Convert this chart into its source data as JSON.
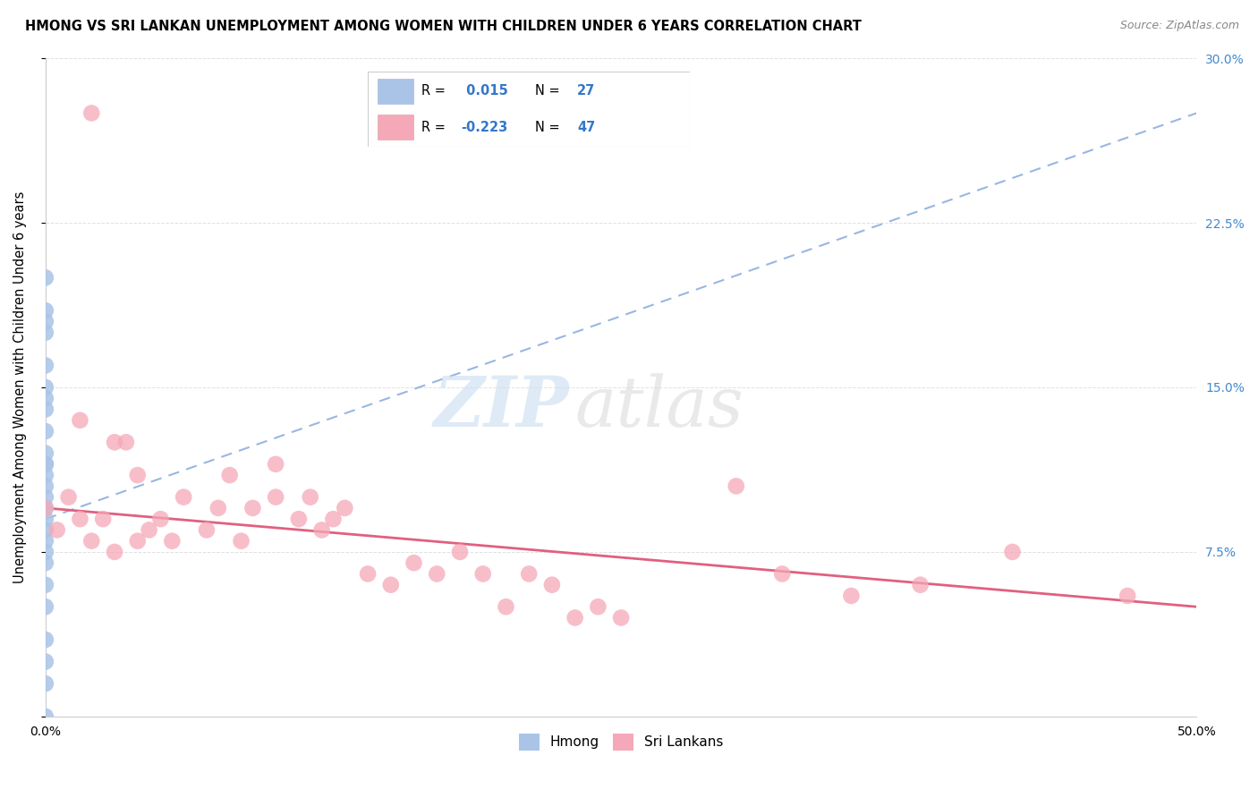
{
  "title": "HMONG VS SRI LANKAN UNEMPLOYMENT AMONG WOMEN WITH CHILDREN UNDER 6 YEARS CORRELATION CHART",
  "source": "Source: ZipAtlas.com",
  "ylabel": "Unemployment Among Women with Children Under 6 years",
  "xlim": [
    0,
    50
  ],
  "ylim": [
    0,
    30
  ],
  "xticks": [
    0,
    10,
    20,
    30,
    40,
    50
  ],
  "xticklabels": [
    "0.0%",
    "",
    "",
    "",
    "",
    "50.0%"
  ],
  "yticks_right": [
    0,
    7.5,
    15,
    22.5,
    30
  ],
  "yticklabels_right": [
    "",
    "7.5%",
    "15.0%",
    "22.5%",
    "30.0%"
  ],
  "hmong_R": 0.015,
  "hmong_N": 27,
  "sri_R": -0.223,
  "sri_N": 47,
  "hmong_color": "#aac4e8",
  "sri_color": "#f5a8b8",
  "hmong_line_color": "#88aadd",
  "sri_line_color": "#e06080",
  "background_color": "#ffffff",
  "grid_color": "#dddddd",
  "hmong_x": [
    0.0,
    0.0,
    0.0,
    0.0,
    0.0,
    0.0,
    0.0,
    0.0,
    0.0,
    0.0,
    0.0,
    0.0,
    0.0,
    0.0,
    0.0,
    0.0,
    0.0,
    0.0,
    0.0,
    0.0,
    0.0,
    0.0,
    0.0,
    0.0,
    0.0,
    0.0,
    0.0
  ],
  "hmong_y": [
    0.0,
    1.5,
    2.5,
    3.5,
    5.0,
    6.0,
    7.0,
    7.5,
    8.0,
    8.5,
    9.0,
    9.5,
    10.0,
    10.5,
    11.0,
    11.5,
    12.0,
    13.0,
    14.0,
    14.5,
    15.0,
    16.0,
    17.5,
    18.0,
    18.5,
    20.0,
    11.5
  ],
  "sri_x": [
    0.0,
    0.5,
    1.0,
    1.5,
    2.0,
    2.5,
    3.0,
    3.5,
    4.0,
    4.5,
    5.0,
    5.5,
    6.0,
    7.0,
    7.5,
    8.0,
    8.5,
    9.0,
    10.0,
    11.0,
    11.5,
    12.0,
    12.5,
    13.0,
    14.0,
    15.0,
    16.0,
    17.0,
    18.0,
    19.0,
    20.0,
    21.0,
    22.0,
    23.0,
    24.0,
    25.0,
    30.0,
    32.0,
    35.0,
    38.0,
    42.0,
    47.0,
    1.5,
    3.0,
    4.0,
    10.0,
    2.0
  ],
  "sri_y": [
    9.5,
    8.5,
    10.0,
    9.0,
    8.0,
    9.0,
    7.5,
    12.5,
    8.0,
    8.5,
    9.0,
    8.0,
    10.0,
    8.5,
    9.5,
    11.0,
    8.0,
    9.5,
    11.5,
    9.0,
    10.0,
    8.5,
    9.0,
    9.5,
    6.5,
    6.0,
    7.0,
    6.5,
    7.5,
    6.5,
    5.0,
    6.5,
    6.0,
    4.5,
    5.0,
    4.5,
    10.5,
    6.5,
    5.5,
    6.0,
    7.5,
    5.5,
    13.5,
    12.5,
    11.0,
    10.0,
    27.5
  ],
  "hmong_trendline_x": [
    0,
    50
  ],
  "hmong_trendline_y": [
    9.0,
    27.5
  ],
  "sri_trendline_x": [
    0,
    50
  ],
  "sri_trendline_y": [
    9.5,
    5.0
  ]
}
